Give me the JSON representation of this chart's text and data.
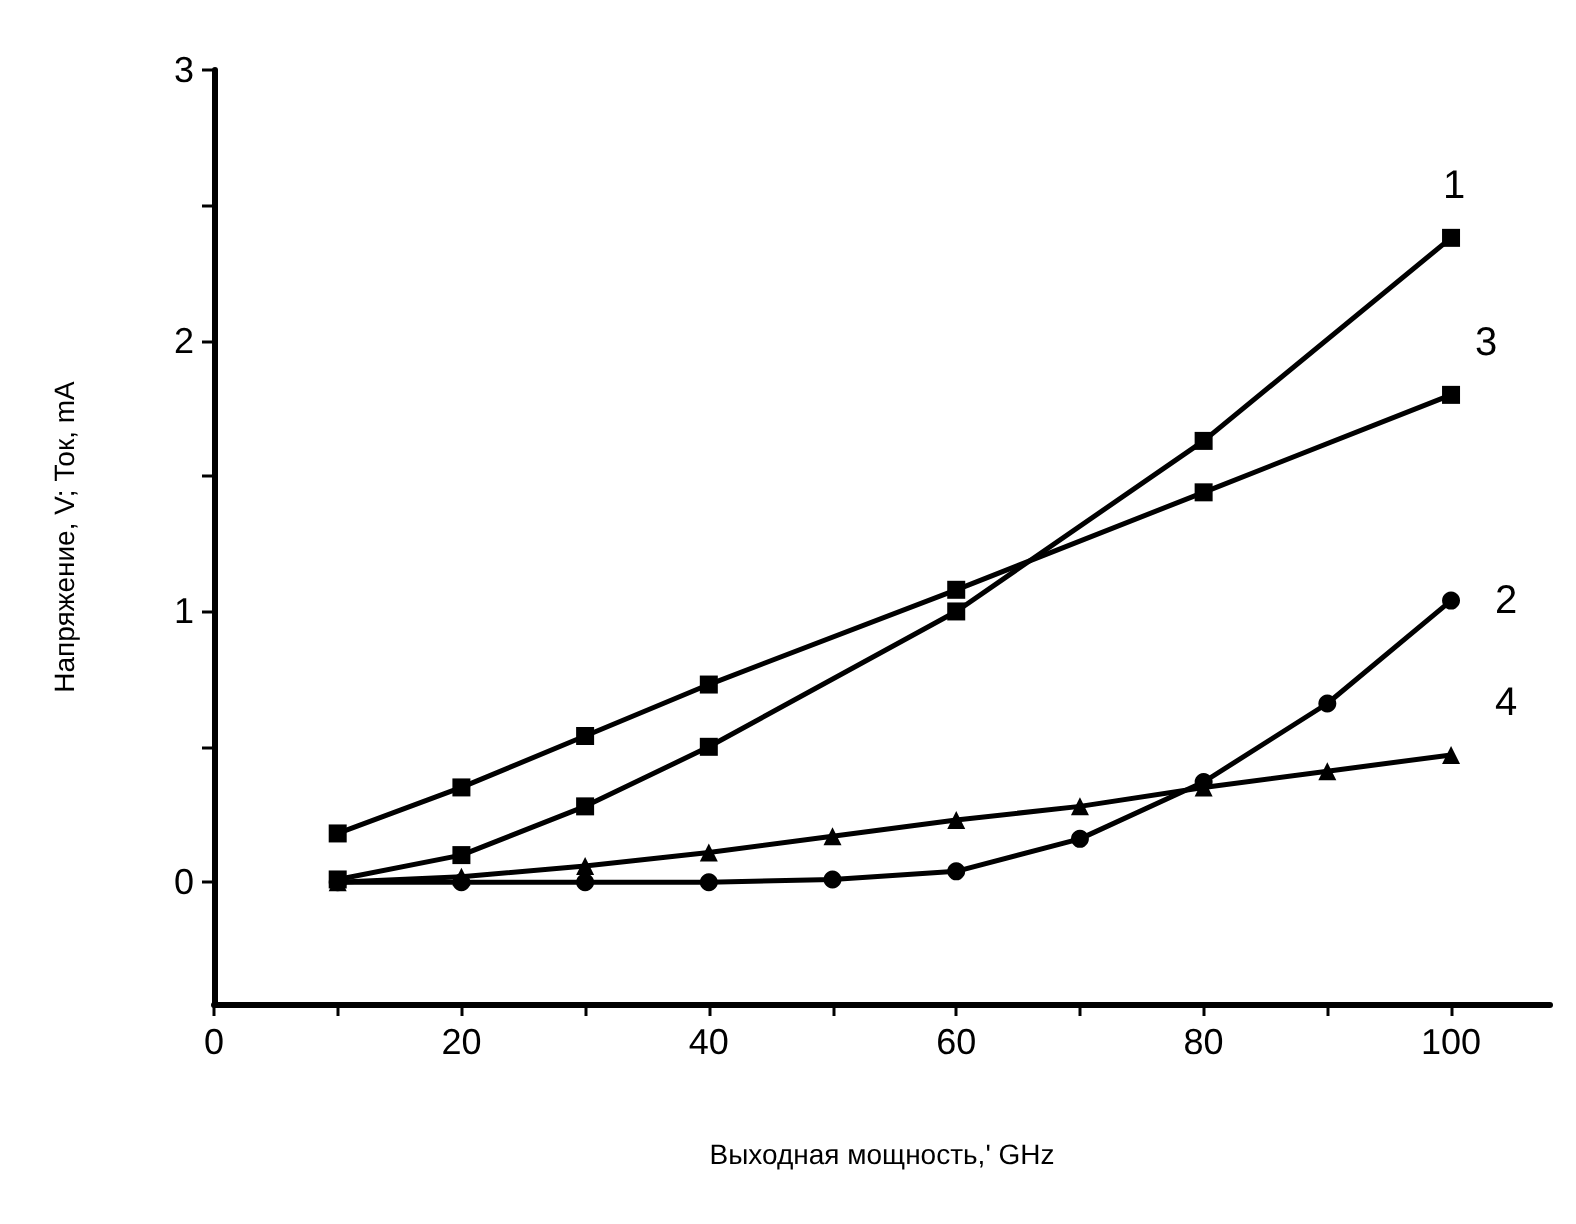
{
  "chart_data": {
    "type": "line",
    "xlabel": "Выходная мощность,' GHz",
    "ylabel": "Напряжение, V; Ток, mA",
    "xlim": [
      0,
      108
    ],
    "ylim": [
      -0.45,
      3
    ],
    "xticks": [
      0,
      {
        "value": 10,
        "label": null
      },
      20,
      {
        "value": 30,
        "label": null
      },
      40,
      {
        "value": 50,
        "label": null
      },
      60,
      {
        "value": 70,
        "label": null
      },
      80,
      {
        "value": 90,
        "label": null
      },
      100
    ],
    "yticks": [
      0,
      {
        "value": 0.5,
        "label": null
      },
      1,
      {
        "value": 1.5,
        "label": null
      },
      2,
      {
        "value": 2.5,
        "label": null
      },
      3
    ],
    "grid": false,
    "legend": false,
    "line_style": "solid",
    "series": [
      {
        "name": "1",
        "color": "#000000",
        "marker": "square",
        "x": [
          10,
          20,
          30,
          40,
          60,
          80,
          100
        ],
        "values": [
          0.01,
          0.1,
          0.28,
          0.5,
          1.0,
          1.63,
          2.38
        ]
      },
      {
        "name": "2",
        "color": "#000000",
        "marker": "circle",
        "x": [
          10,
          20,
          30,
          40,
          50,
          60,
          70,
          80,
          90,
          100
        ],
        "values": [
          0,
          0,
          0,
          0,
          0.01,
          0.04,
          0.16,
          0.37,
          0.66,
          1.04
        ]
      },
      {
        "name": "3",
        "color": "#000000",
        "marker": "square",
        "x": [
          10,
          20,
          30,
          40,
          60,
          80,
          100
        ],
        "values": [
          0.18,
          0.35,
          0.54,
          0.73,
          1.08,
          1.44,
          1.8
        ]
      },
      {
        "name": "4",
        "color": "#000000",
        "marker": "triangle",
        "x": [
          10,
          20,
          30,
          40,
          50,
          60,
          70,
          80,
          90,
          100
        ],
        "values": [
          0,
          0.02,
          0.06,
          0.11,
          0.17,
          0.23,
          0.28,
          0.35,
          0.41,
          0.47
        ]
      }
    ]
  }
}
